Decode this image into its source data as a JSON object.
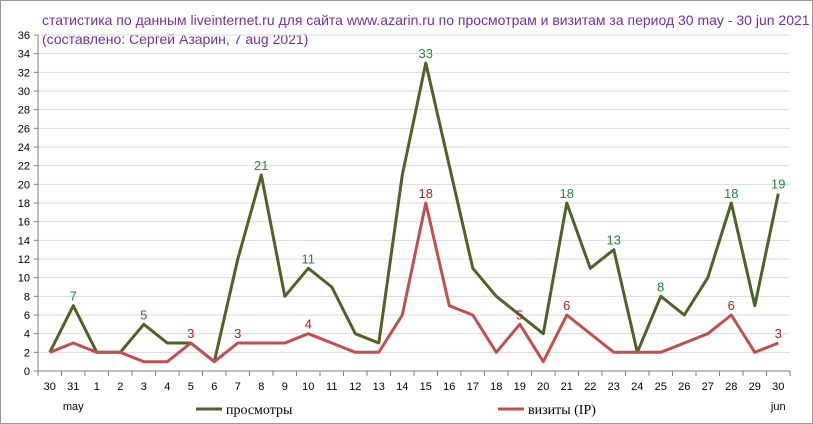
{
  "chart_data": {
    "type": "line",
    "title": "статистика по данным liveinternet.ru для сайта www.azarin.ru по просмотрам и визитам за период 30 may - 30 jun 2021",
    "subtitle": "(составлено: Сергей Азарин, 7 aug 2021)",
    "categories": [
      "30",
      "31",
      "1",
      "2",
      "3",
      "4",
      "5",
      "6",
      "7",
      "8",
      "9",
      "10",
      "11",
      "12",
      "13",
      "14",
      "15",
      "16",
      "17",
      "18",
      "19",
      "20",
      "21",
      "22",
      "23",
      "24",
      "25",
      "26",
      "27",
      "28",
      "29",
      "30"
    ],
    "month_labels": [
      {
        "index": 1,
        "text": "may"
      },
      {
        "index": 31,
        "text": "jun"
      }
    ],
    "ylim": [
      0,
      36
    ],
    "ytick_step": 2,
    "grid": true,
    "legend_position": "bottom",
    "series": [
      {
        "name": "просмотры",
        "color": "#4f6228",
        "label_color": "#1e8a3a",
        "values": [
          2,
          7,
          2,
          2,
          5,
          3,
          3,
          1,
          12,
          21,
          8,
          11,
          9,
          4,
          3,
          21,
          33,
          22,
          11,
          8,
          6,
          4,
          18,
          11,
          13,
          2,
          8,
          6,
          10,
          18,
          7,
          19
        ],
        "labeled_indices": [
          1,
          4,
          9,
          11,
          16,
          22,
          24,
          26,
          29,
          31
        ]
      },
      {
        "name": "визиты (IP)",
        "color": "#c0504d",
        "label_color": "#b01e1e",
        "values": [
          2,
          3,
          2,
          2,
          1,
          1,
          3,
          1,
          3,
          3,
          3,
          4,
          3,
          2,
          2,
          6,
          18,
          7,
          6,
          2,
          5,
          1,
          6,
          4,
          2,
          2,
          2,
          3,
          4,
          6,
          2,
          3
        ],
        "labeled_indices": [
          6,
          8,
          11,
          16,
          20,
          22,
          29,
          31
        ]
      }
    ]
  }
}
